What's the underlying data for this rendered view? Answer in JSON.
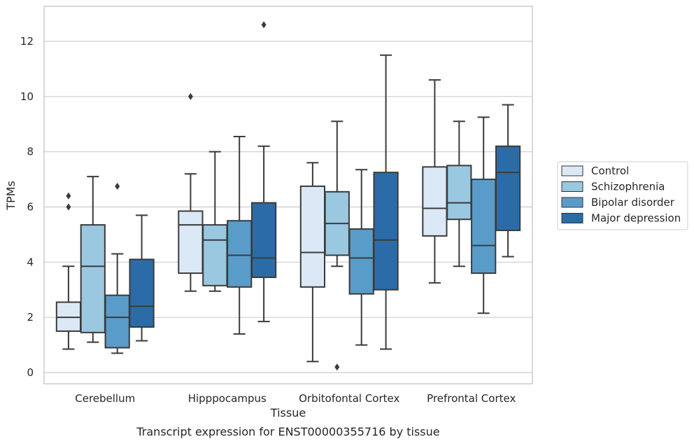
{
  "caption": "Transcript expression for ENST00000355716 by tissue",
  "chart_data": {
    "type": "box",
    "title": "",
    "xlabel": "Tissue",
    "ylabel": "TPMs",
    "ylim": [
      -0.4,
      13.2
    ],
    "yticks": [
      0,
      2,
      4,
      6,
      8,
      10,
      12
    ],
    "grid": "horizontal",
    "legend_position": "right",
    "categories": [
      "Cerebellum",
      "Hipppocampus",
      "Orbitofontal Cortex",
      "Prefrontal Cortex"
    ],
    "series": [
      {
        "name": "Control",
        "color": "#dbe9f6",
        "boxes": [
          {
            "whislo": 0.85,
            "q1": 1.5,
            "med": 2.0,
            "q3": 2.55,
            "whishi": 3.85,
            "fliers": [
              6.4,
              6.0
            ]
          },
          {
            "whislo": 2.95,
            "q1": 3.6,
            "med": 5.35,
            "q3": 5.85,
            "whishi": 7.2,
            "fliers": [
              10.0
            ]
          },
          {
            "whislo": 0.4,
            "q1": 3.1,
            "med": 4.35,
            "q3": 6.75,
            "whishi": 7.6,
            "fliers": []
          },
          {
            "whislo": 3.25,
            "q1": 4.95,
            "med": 5.95,
            "q3": 7.45,
            "whishi": 10.6,
            "fliers": []
          }
        ]
      },
      {
        "name": "Schizophrenia",
        "color": "#9ac8e0",
        "boxes": [
          {
            "whislo": 1.1,
            "q1": 1.45,
            "med": 3.85,
            "q3": 5.35,
            "whishi": 7.1,
            "fliers": []
          },
          {
            "whislo": 2.95,
            "q1": 3.15,
            "med": 4.8,
            "q3": 5.35,
            "whishi": 8.0,
            "fliers": []
          },
          {
            "whislo": 3.85,
            "q1": 4.25,
            "med": 5.4,
            "q3": 6.55,
            "whishi": 9.1,
            "fliers": [
              0.2
            ]
          },
          {
            "whislo": 3.85,
            "q1": 5.55,
            "med": 6.15,
            "q3": 7.5,
            "whishi": 9.1,
            "fliers": []
          }
        ]
      },
      {
        "name": "Bipolar disorder",
        "color": "#5a9cc9",
        "boxes": [
          {
            "whislo": 0.7,
            "q1": 0.9,
            "med": 2.0,
            "q3": 2.8,
            "whishi": 4.3,
            "fliers": [
              6.75
            ]
          },
          {
            "whislo": 1.4,
            "q1": 3.1,
            "med": 4.25,
            "q3": 5.5,
            "whishi": 8.55,
            "fliers": []
          },
          {
            "whislo": 1.0,
            "q1": 2.85,
            "med": 4.15,
            "q3": 5.2,
            "whishi": 7.35,
            "fliers": []
          },
          {
            "whislo": 2.15,
            "q1": 3.6,
            "med": 4.6,
            "q3": 7.0,
            "whishi": 9.25,
            "fliers": []
          }
        ]
      },
      {
        "name": "Major depression",
        "color": "#2b6ca8",
        "boxes": [
          {
            "whislo": 1.15,
            "q1": 1.65,
            "med": 2.4,
            "q3": 4.1,
            "whishi": 5.7,
            "fliers": []
          },
          {
            "whislo": 1.85,
            "q1": 3.45,
            "med": 4.15,
            "q3": 6.15,
            "whishi": 8.2,
            "fliers": [
              12.6
            ]
          },
          {
            "whislo": 0.85,
            "q1": 3.0,
            "med": 4.8,
            "q3": 7.25,
            "whishi": 11.5,
            "fliers": []
          },
          {
            "whislo": 4.2,
            "q1": 5.15,
            "med": 7.25,
            "q3": 8.2,
            "whishi": 9.7,
            "fliers": []
          }
        ]
      }
    ]
  }
}
